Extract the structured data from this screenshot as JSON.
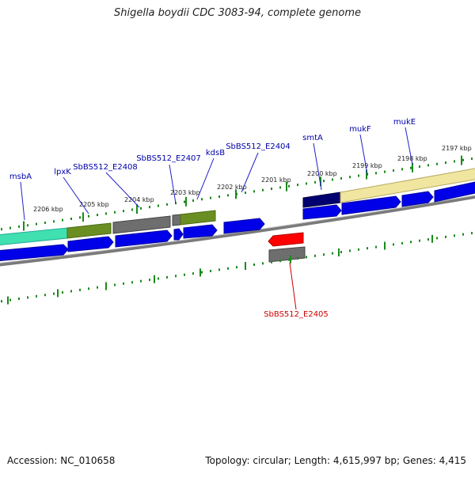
{
  "title": "Shigella boydii CDC 3083-94, complete genome",
  "footer": {
    "accession": "Accession: NC_010658",
    "topology": "Topology: circular; Length: 4,615,997 bp; Genes: 4,415"
  },
  "colors": {
    "gene": "#0000e8",
    "selected": "#ff0000",
    "label": "#0000aa",
    "selected_label": "#cc0000",
    "tick": "#1a8a1a",
    "backbone": "#808080",
    "teal": "#40e0b0",
    "olive": "#6b8e23",
    "gray": "#6e6e6e",
    "navy": "#000070",
    "khaki": "#f0e6a0"
  },
  "scale_labels": [
    "2206 kbp",
    "2205 kbp",
    "2204 kbp",
    "2203 kbp",
    "2202 kbp",
    "2201 kbp",
    "2200 kbp",
    "2199 kbp",
    "2198 kbp",
    "2197 kbp"
  ],
  "gene_labels": [
    "msbA",
    "lpxK",
    "SbBS512_E2408",
    "SbBS512_E2407",
    "kdsB",
    "SbBS512_E2404",
    "smtA",
    "mukF",
    "mukE"
  ],
  "selected_label": "SbBS512_E2405"
}
